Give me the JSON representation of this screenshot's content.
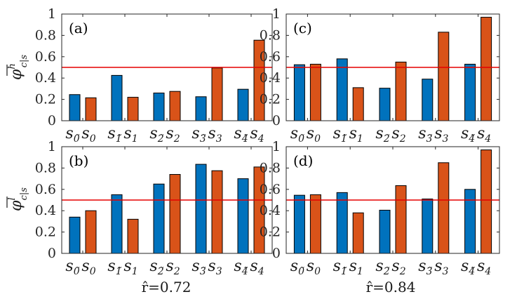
{
  "colors": {
    "high": "#0072BD",
    "low": "#D95319",
    "reference": "#E60000",
    "axis": "#262626"
  },
  "y_axis_labels": {
    "top": {
      "base": "φ",
      "superscript": "h",
      "subscript": "c|s"
    },
    "bottom": {
      "base": "φ",
      "superscript": "l",
      "subscript": "c|s"
    }
  },
  "x_axis_labels": [
    {
      "text": "r̂=0.72"
    },
    {
      "text": "r̂=0.84"
    }
  ],
  "chart_data": [
    {
      "panel": "(a)",
      "type": "bar",
      "categories": [
        [
          "s_0̃",
          "s_0"
        ],
        [
          "s_1̃",
          "s_1"
        ],
        [
          "s_2̃",
          "s_2"
        ],
        [
          "s_3̃",
          "s_3"
        ],
        [
          "s_4̃",
          "s_4"
        ]
      ],
      "series": [
        {
          "name": "tilde",
          "values": [
            0.245,
            0.425,
            0.26,
            0.225,
            0.295
          ]
        },
        {
          "name": "plain",
          "values": [
            0.215,
            0.22,
            0.275,
            0.495,
            0.755
          ]
        }
      ],
      "reference_line": 0.5,
      "ylim": [
        0,
        1
      ],
      "yticks": [
        "0",
        "0.2",
        "0.4",
        "0.6",
        "0.8",
        "1"
      ]
    },
    {
      "panel": "(c)",
      "type": "bar",
      "categories": [
        [
          "s_0̃",
          "s_0"
        ],
        [
          "s_1̃",
          "s_1"
        ],
        [
          "s_2̃",
          "s_2"
        ],
        [
          "s_3̃",
          "s_3"
        ],
        [
          "s_4̃",
          "s_4"
        ]
      ],
      "series": [
        {
          "name": "tilde",
          "values": [
            0.525,
            0.58,
            0.305,
            0.39,
            0.53
          ]
        },
        {
          "name": "plain",
          "values": [
            0.53,
            0.31,
            0.55,
            0.83,
            0.97
          ]
        }
      ],
      "reference_line": 0.5,
      "ylim": [
        0,
        1
      ],
      "yticks": [
        "0",
        "0.2",
        "0.4",
        "0.6",
        "0.8",
        "1"
      ]
    },
    {
      "panel": "(b)",
      "type": "bar",
      "categories": [
        [
          "s_0̃",
          "s_0"
        ],
        [
          "s_1̃",
          "s_1"
        ],
        [
          "s_2̃",
          "s_2"
        ],
        [
          "s_3̃",
          "s_3"
        ],
        [
          "s_4̃",
          "s_4"
        ]
      ],
      "series": [
        {
          "name": "tilde",
          "values": [
            0.34,
            0.55,
            0.65,
            0.835,
            0.7
          ]
        },
        {
          "name": "plain",
          "values": [
            0.4,
            0.32,
            0.74,
            0.775,
            0.81
          ]
        }
      ],
      "reference_line": 0.5,
      "ylim": [
        0,
        1
      ],
      "yticks": [
        "0",
        "0.2",
        "0.4",
        "0.6",
        "0.8",
        "1"
      ]
    },
    {
      "panel": "(d)",
      "type": "bar",
      "categories": [
        [
          "s_0̃",
          "s_0"
        ],
        [
          "s_1̃",
          "s_1"
        ],
        [
          "s_2̃",
          "s_2"
        ],
        [
          "s_3̃",
          "s_3"
        ],
        [
          "s_4̃",
          "s_4"
        ]
      ],
      "series": [
        {
          "name": "tilde",
          "values": [
            0.545,
            0.57,
            0.405,
            0.51,
            0.6
          ]
        },
        {
          "name": "plain",
          "values": [
            0.55,
            0.38,
            0.635,
            0.85,
            0.97
          ]
        }
      ],
      "reference_line": 0.5,
      "ylim": [
        0,
        1
      ],
      "yticks": [
        "0",
        "0.2",
        "0.4",
        "0.6",
        "0.8",
        "1"
      ]
    }
  ]
}
